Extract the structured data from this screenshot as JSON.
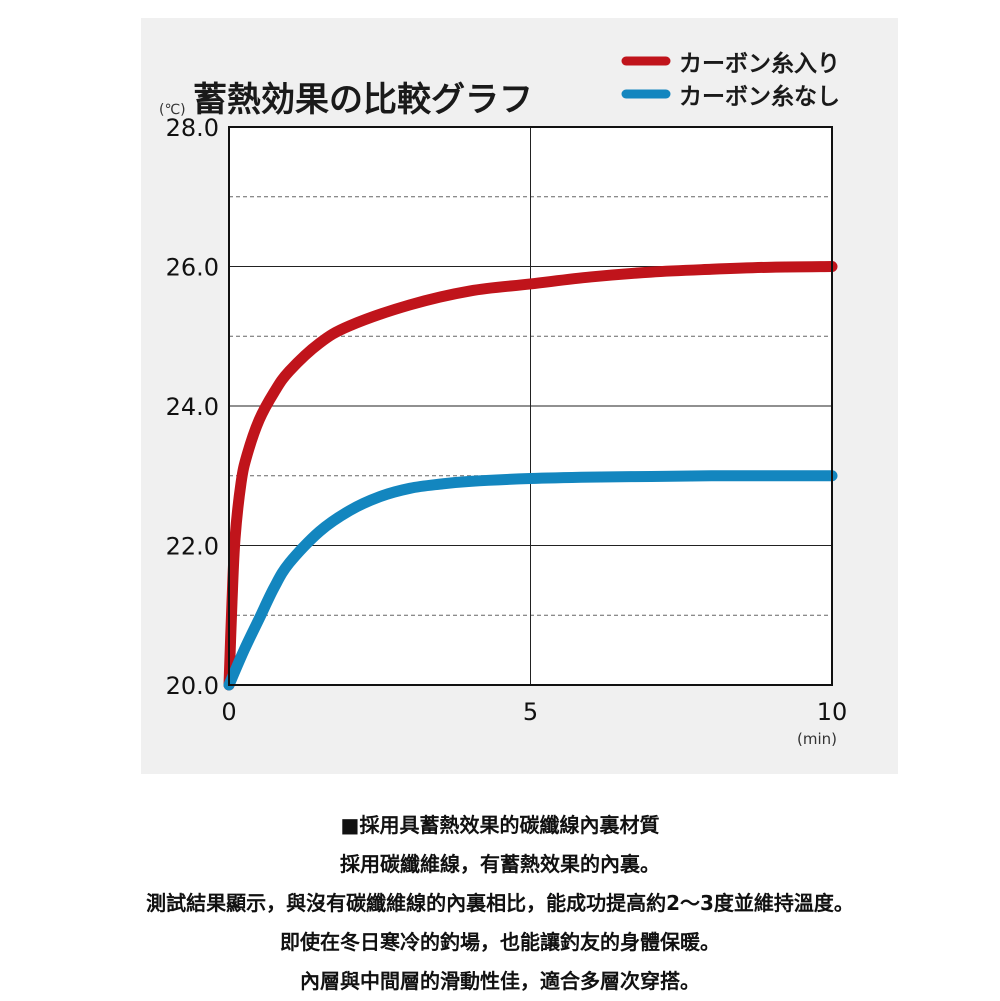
{
  "chart_data": {
    "type": "line",
    "title": "蓄熱効果の比較グラフ",
    "y_unit": "(℃)",
    "x_unit": "(min)",
    "xlim": [
      0,
      10
    ],
    "ylim": [
      20,
      28
    ],
    "x_ticks": [
      "0",
      "5",
      "10"
    ],
    "x_tick_values": [
      0,
      5,
      10
    ],
    "y_ticks": [
      "20.0",
      "22.0",
      "24.0",
      "26.0",
      "28.0"
    ],
    "y_tick_values": [
      20,
      22,
      24,
      26,
      28
    ],
    "grid": true,
    "legend_position": "top-right",
    "series": [
      {
        "name": "カーボン糸入り",
        "color": "#c0141b",
        "x": [
          0,
          0.05,
          0.1,
          0.2,
          0.3,
          0.5,
          0.75,
          1,
          1.5,
          2,
          3,
          4,
          5,
          6,
          7,
          8,
          9,
          10
        ],
        "y": [
          20,
          21.2,
          22.1,
          22.9,
          23.3,
          23.8,
          24.2,
          24.5,
          24.9,
          25.15,
          25.45,
          25.65,
          25.75,
          25.85,
          25.92,
          25.96,
          25.99,
          26.0
        ]
      },
      {
        "name": "カーボン糸なし",
        "color": "#1386bf",
        "x": [
          0,
          0.25,
          0.5,
          0.75,
          1,
          1.5,
          2,
          2.5,
          3,
          3.5,
          4,
          5,
          6,
          7,
          8,
          9,
          10
        ],
        "y": [
          20,
          20.5,
          20.95,
          21.4,
          21.75,
          22.2,
          22.5,
          22.7,
          22.82,
          22.88,
          22.92,
          22.96,
          22.98,
          22.99,
          23.0,
          23.0,
          23.0
        ]
      }
    ]
  },
  "caption": {
    "lines": [
      "■採用具蓄熱效果的碳纖線內裏材質",
      "採用碳纖維線，有蓄熱效果的內裏。",
      "測試結果顯示，與沒有碳纖維線的內裏相比，能成功提高約2～3度並維持溫度。",
      "即使在冬日寒冷的釣場，也能讓釣友的身體保暖。",
      "內層與中間層的滑動性佳，適合多層次穿搭。"
    ]
  }
}
